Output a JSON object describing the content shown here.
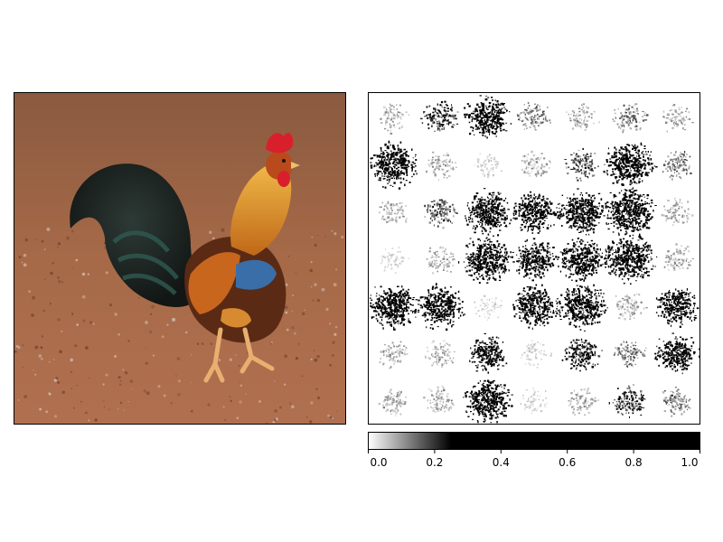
{
  "chart_data": [
    {
      "type": "image",
      "subject": "rooster-photo",
      "title": "",
      "xlabel": "",
      "ylabel": "",
      "axes_ticks": false
    },
    {
      "type": "heatmap",
      "title": "",
      "xlabel": "",
      "ylabel": "",
      "axes_ticks": false,
      "grid_rows": 7,
      "grid_cols": 7,
      "colormap": "gray_r",
      "values": [
        [
          0.1,
          0.25,
          0.7,
          0.15,
          0.1,
          0.15,
          0.1
        ],
        [
          0.8,
          0.1,
          0.05,
          0.1,
          0.2,
          0.85,
          0.15
        ],
        [
          0.1,
          0.2,
          0.75,
          0.7,
          0.8,
          0.95,
          0.1
        ],
        [
          0.05,
          0.1,
          0.9,
          0.55,
          0.75,
          0.95,
          0.1
        ],
        [
          0.85,
          0.75,
          0.05,
          0.7,
          0.85,
          0.1,
          0.6
        ],
        [
          0.1,
          0.1,
          0.45,
          0.05,
          0.35,
          0.15,
          0.55
        ],
        [
          0.1,
          0.1,
          0.8,
          0.05,
          0.1,
          0.25,
          0.15
        ]
      ],
      "colorbar": {
        "range": [
          0.0,
          1.0
        ],
        "ticks": [
          0.0,
          0.2,
          0.4,
          0.6,
          0.8,
          1.0
        ],
        "tick_labels": [
          "0.0",
          "0.2",
          "0.4",
          "0.6",
          "0.8",
          "1.0"
        ],
        "saturation_value": 0.25
      }
    }
  ],
  "colors": {
    "ground": "#a0674a",
    "ground_dark": "#7a4a32",
    "tail": "#1c2220",
    "tail_sheen": "#2f5a50",
    "body_orange": "#c8661e",
    "neck_gold": "#e0a030",
    "wing_blue": "#3a6ea8",
    "comb_red": "#d8202c",
    "legs": "#e8b070",
    "heat_ink": "#000000"
  }
}
